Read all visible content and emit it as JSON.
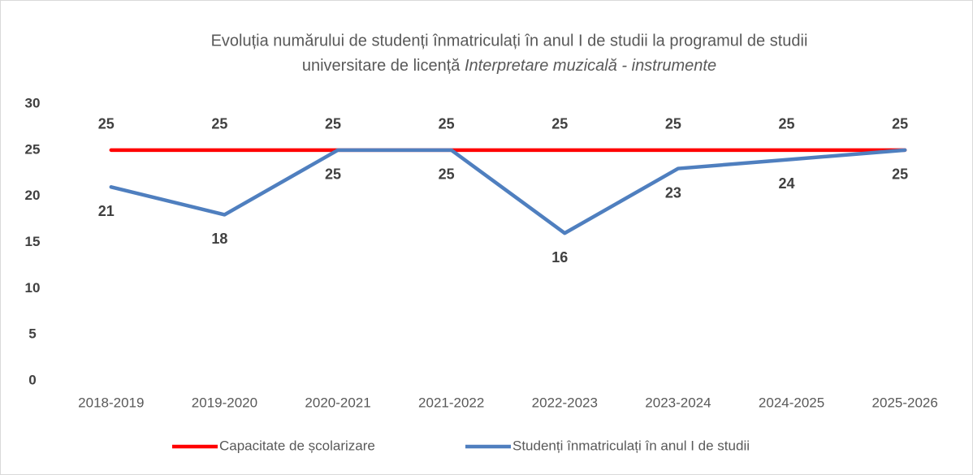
{
  "chart_data": {
    "type": "line",
    "title_lines": [
      "Evoluția numărului de studenți înmatriculați în anul I de studii la programul de studii",
      "universitare de licență"
    ],
    "title_italic": "Interpretare muzicală - instrumente",
    "categories": [
      "2018-2019",
      "2019-2020",
      "2020-2021",
      "2021-2022",
      "2022-2023",
      "2023-2024",
      "2024-2025",
      "2025-2026"
    ],
    "series": [
      {
        "name": "Capacitate de școlarizare",
        "color": "#ff0000",
        "values": [
          25,
          25,
          25,
          25,
          25,
          25,
          25,
          25
        ]
      },
      {
        "name": "Studenți înmatriculați în anul I de studii",
        "color": "#4f7fbf",
        "values": [
          21,
          18,
          25,
          25,
          16,
          23,
          24,
          25
        ]
      }
    ],
    "ylim": [
      0,
      30
    ],
    "yticks": [
      0,
      5,
      10,
      15,
      20,
      25,
      30
    ],
    "grid": false,
    "legend": "bottom"
  }
}
